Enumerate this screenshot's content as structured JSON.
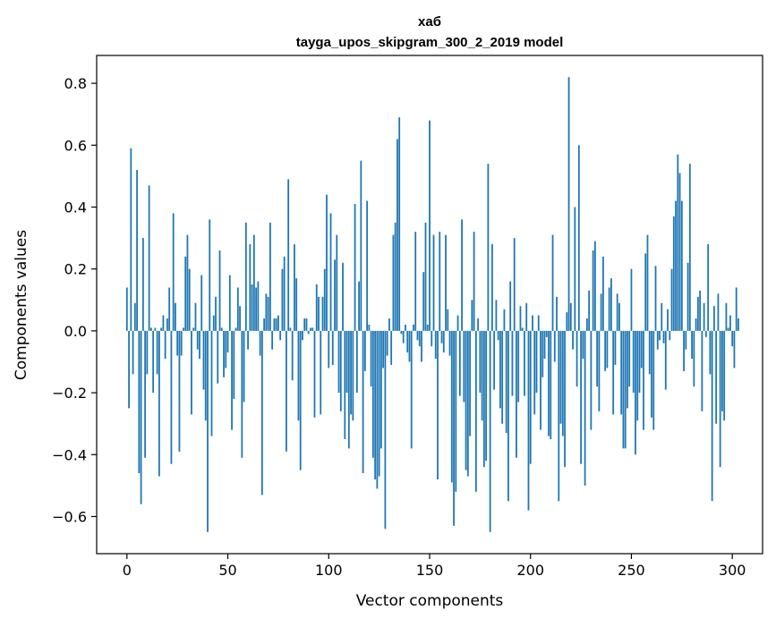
{
  "chart_data": {
    "type": "bar",
    "title": "хаб",
    "subtitle": "tayga_upos_skipgram_300_2_2019 model",
    "xlabel": "Vector components",
    "ylabel": "Components values",
    "xlim": [
      -15,
      315
    ],
    "ylim": [
      -0.72,
      0.89
    ],
    "xticks": [
      0,
      50,
      100,
      150,
      200,
      250,
      300
    ],
    "xtick_labels": [
      "0",
      "50",
      "100",
      "150",
      "200",
      "250",
      "300"
    ],
    "yticks": [
      -0.6,
      -0.4,
      -0.2,
      0.0,
      0.2,
      0.4,
      0.6,
      0.8
    ],
    "ytick_labels": [
      "−0.6",
      "−0.4",
      "−0.2",
      "0.0",
      "0.2",
      "0.4",
      "0.6",
      "0.8"
    ],
    "grid": false,
    "color": "#1f77b4",
    "x_start": 0,
    "values": [
      0.14,
      -0.25,
      0.59,
      -0.14,
      0.09,
      0.52,
      -0.46,
      -0.56,
      0.3,
      -0.41,
      -0.14,
      0.47,
      0.01,
      -0.2,
      0.01,
      -0.14,
      -0.47,
      0.01,
      0.05,
      -0.09,
      0.04,
      0.14,
      -0.43,
      0.38,
      0.09,
      -0.08,
      -0.39,
      -0.08,
      0.01,
      0.24,
      0.31,
      0.2,
      -0.27,
      0.01,
      0.09,
      -0.06,
      -0.09,
      0.18,
      -0.19,
      -0.29,
      -0.65,
      0.36,
      -0.34,
      0.05,
      0.11,
      -0.17,
      0.26,
      0.01,
      -0.15,
      -0.12,
      -0.07,
      0.18,
      -0.32,
      -0.22,
      0.01,
      0.14,
      0.08,
      -0.41,
      -0.23,
      0.35,
      -0.06,
      0.28,
      0.15,
      0.31,
      0.14,
      0.16,
      -0.08,
      -0.53,
      0.04,
      0.12,
      0.11,
      0.35,
      -0.06,
      0.04,
      0.04,
      0.05,
      -0.03,
      0.2,
      0.24,
      -0.39,
      0.49,
      0.01,
      -0.16,
      0.28,
      0.17,
      -0.29,
      -0.45,
      -0.03,
      0.04,
      0.04,
      -0.01,
      0.01,
      0.01,
      -0.28,
      0.15,
      0.11,
      -0.27,
      0.11,
      0.2,
      0.44,
      -0.12,
      0.38,
      -0.11,
      0.23,
      0.31,
      -0.2,
      -0.26,
      0.22,
      -0.35,
      -0.2,
      -0.38,
      -0.27,
      -0.29,
      0.41,
      -0.2,
      0.16,
      0.55,
      -0.46,
      -0.13,
      0.42,
      0.02,
      -0.18,
      -0.41,
      -0.48,
      -0.51,
      -0.47,
      -0.38,
      -0.12,
      -0.64,
      -0.08,
      0.04,
      -0.11,
      0.31,
      0.35,
      0.62,
      0.69,
      -0.01,
      -0.04,
      0.02,
      -0.07,
      -0.1,
      -0.38,
      0.02,
      0.32,
      -0.03,
      -0.05,
      -0.1,
      0.19,
      0.35,
      0.02,
      0.68,
      -0.05,
      0.31,
      -0.09,
      -0.48,
      0.32,
      -0.04,
      -0.07,
      0.31,
      0.07,
      -0.08,
      -0.49,
      -0.63,
      -0.52,
      0.05,
      -0.21,
      0.36,
      -0.23,
      -0.45,
      -0.47,
      -0.34,
      0.1,
      0.32,
      -0.52,
      0.04,
      -0.2,
      -0.29,
      -0.44,
      -0.42,
      0.54,
      -0.65,
      0.28,
      -0.19,
      0.1,
      -0.03,
      -0.25,
      -0.3,
      0.07,
      -0.33,
      -0.55,
      0.16,
      -0.21,
      0.3,
      -0.41,
      -0.23,
      0.08,
      0.01,
      -0.21,
      0.09,
      -0.58,
      -0.43,
      0.05,
      -0.27,
      -0.2,
      0.05,
      -0.32,
      -0.15,
      -0.09,
      -0.02,
      -0.34,
      -0.35,
      0.31,
      -0.1,
      0.11,
      -0.55,
      -0.3,
      -0.34,
      -0.44,
      0.06,
      0.82,
      0.09,
      -0.06,
      0.4,
      -0.18,
      0.6,
      -0.43,
      -0.09,
      -0.5,
      0.04,
      0.13,
      -0.32,
      0.26,
      0.29,
      -0.18,
      -0.26,
      0.12,
      0.24,
      -0.13,
      -0.12,
      0.14,
      0.17,
      -0.27,
      -0.11,
      0.12,
      0.09,
      -0.27,
      -0.38,
      -0.38,
      -0.25,
      -0.18,
      0.2,
      -0.2,
      -0.4,
      -0.29,
      -0.2,
      -0.12,
      -0.32,
      0.25,
      0.31,
      -0.14,
      -0.28,
      -0.32,
      0.21,
      -0.06,
      -0.03,
      0.09,
      -0.04,
      -0.19,
      0.07,
      -0.03,
      0.2,
      0.37,
      0.42,
      0.57,
      0.51,
      0.42,
      -0.13,
      -0.06,
      0.22,
      0.54,
      -0.09,
      -0.18,
      0.04,
      0.11,
      0.13,
      -0.26,
      0.09,
      -0.02,
      0.28,
      -0.14,
      -0.55,
      0.08,
      -0.3,
      0.12,
      -0.44,
      -0.26,
      -0.29,
      0.09,
      0.01,
      0.05,
      -0.05,
      -0.12,
      0.14,
      0.04
    ]
  }
}
